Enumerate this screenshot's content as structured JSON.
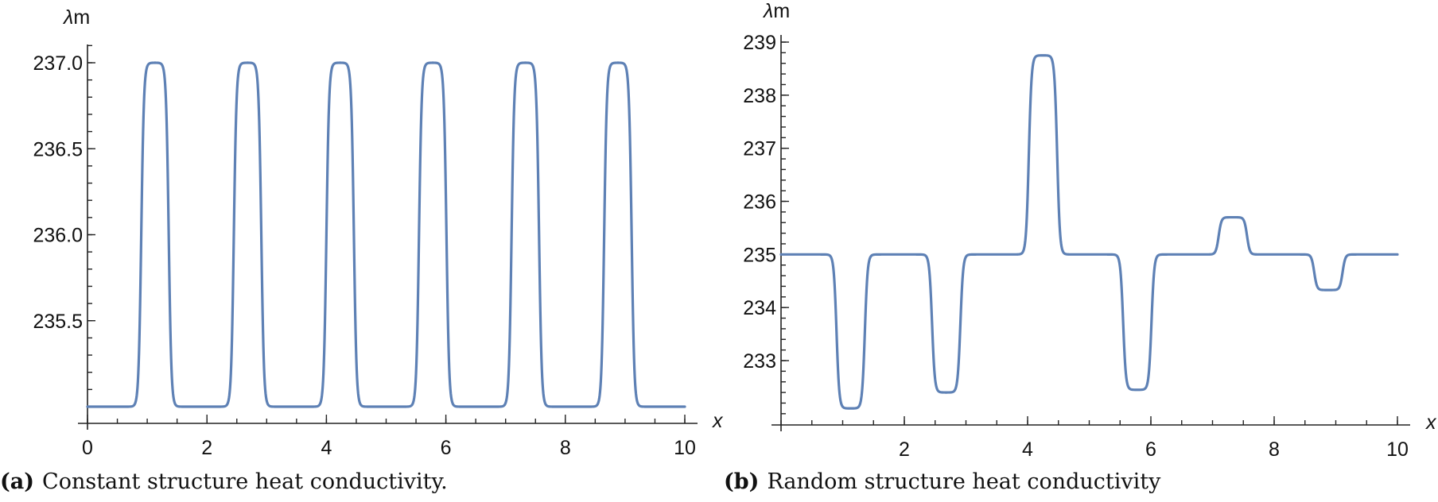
{
  "figure": {
    "line_color": "#5E81B5",
    "captions": [
      {
        "tag": "(a)",
        "text": "Constant structure heat conductivity."
      },
      {
        "tag": "(b)",
        "text": "Random structure heat conductivity"
      }
    ]
  },
  "chart_data": [
    {
      "type": "line",
      "title": "(a) Constant structure heat conductivity.",
      "xlabel": "x",
      "ylabel": "λm",
      "xlim": [
        0,
        10
      ],
      "ylim": [
        234.9,
        237.1
      ],
      "xticks": [
        0,
        2,
        4,
        6,
        8,
        10
      ],
      "xtick_labels": [
        "0",
        "2",
        "4",
        "6",
        "8",
        "10"
      ],
      "yticks": [
        235.5,
        236.0,
        236.5,
        237.0
      ],
      "ytick_labels": [
        "235.5",
        "236.0",
        "236.5",
        "237.0"
      ],
      "x_minor_step": 0.5,
      "y_minor_step": 0.1,
      "grid": false,
      "baseline": 235.0,
      "features": [
        {
          "x_start": 0.9,
          "x_end": 1.36,
          "value": 237.0
        },
        {
          "x_start": 2.45,
          "x_end": 2.91,
          "value": 237.0
        },
        {
          "x_start": 4.0,
          "x_end": 4.46,
          "value": 237.0
        },
        {
          "x_start": 5.55,
          "x_end": 6.01,
          "value": 237.0
        },
        {
          "x_start": 7.1,
          "x_end": 7.56,
          "value": 237.0
        },
        {
          "x_start": 8.65,
          "x_end": 9.11,
          "value": 237.0
        }
      ]
    },
    {
      "type": "line",
      "title": "(b) Random structure heat conductivity",
      "xlabel": "x",
      "ylabel": "λm",
      "xlim": [
        0,
        10
      ],
      "ylim": [
        232.0,
        239.1
      ],
      "xticks": [
        2,
        4,
        6,
        8,
        10
      ],
      "xtick_labels": [
        "2",
        "4",
        "6",
        "8",
        "10"
      ],
      "yticks": [
        233,
        234,
        235,
        236,
        237,
        238,
        239
      ],
      "ytick_labels": [
        "233",
        "234",
        "235",
        "236",
        "237",
        "238",
        "239"
      ],
      "x_minor_step": 0.5,
      "y_minor_step": 0.2,
      "grid": false,
      "baseline": 235.0,
      "features": [
        {
          "x_start": 0.9,
          "x_end": 1.36,
          "value": 232.1
        },
        {
          "x_start": 2.45,
          "x_end": 2.91,
          "value": 232.4
        },
        {
          "x_start": 4.02,
          "x_end": 4.48,
          "value": 238.75
        },
        {
          "x_start": 5.55,
          "x_end": 6.01,
          "value": 232.45
        },
        {
          "x_start": 7.1,
          "x_end": 7.56,
          "value": 235.7
        },
        {
          "x_start": 8.65,
          "x_end": 9.11,
          "value": 234.33
        }
      ]
    }
  ]
}
